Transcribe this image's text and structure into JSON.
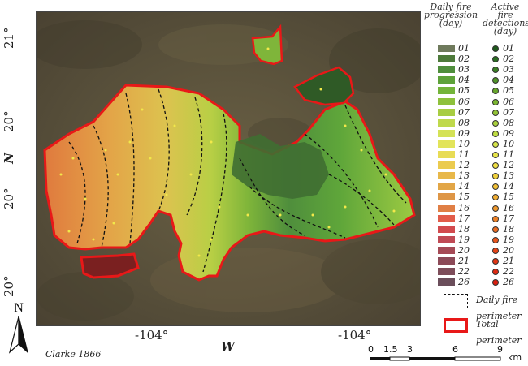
{
  "map": {
    "lat_ticks": [
      "21°",
      "20°",
      "20°",
      "20°"
    ],
    "lat_axis_label": "N",
    "lon_ticks": [
      "-104°",
      "-104°"
    ],
    "lon_axis_label": "W",
    "credit": "Clarke 1866",
    "north_label": "N"
  },
  "legend": {
    "progression_title": "Daily fire progression (day)",
    "detections_title": "Active fire detections (day)",
    "days": [
      "01",
      "02",
      "03",
      "04",
      "05",
      "06",
      "07",
      "08",
      "09",
      "10",
      "11",
      "12",
      "13",
      "14",
      "15",
      "16",
      "17",
      "18",
      "19",
      "20",
      "21",
      "22",
      "26"
    ],
    "progression_colors": [
      "#6f7a5c",
      "#4d7a3a",
      "#4f8e3c",
      "#5ea23a",
      "#74b43a",
      "#8ec13c",
      "#a8cd42",
      "#bfd94c",
      "#d4e257",
      "#e2e45a",
      "#e8dc55",
      "#ebcb4f",
      "#e8b84a",
      "#e2a647",
      "#de9646",
      "#e07f45",
      "#e25c4a",
      "#d24a4e",
      "#c04a55",
      "#a54a56",
      "#8c4a58",
      "#7d4d5a",
      "#6b4e5b"
    ],
    "detection_colors": [
      "#1f5a1c",
      "#2a6d22",
      "#3a7f25",
      "#4f9328",
      "#66a62c",
      "#7bb631",
      "#92c336",
      "#a8d03c",
      "#bedc42",
      "#d4e348",
      "#e6e448",
      "#eede42",
      "#efd03b",
      "#f0bf36",
      "#f0ad32",
      "#ee982d",
      "#ec8127",
      "#ea6b22",
      "#e8551d",
      "#e54418",
      "#e13514",
      "#de2912",
      "#d81e10"
    ],
    "daily_perimeter_label": "Daily fire perimeter",
    "total_perimeter_label": "Total perimeter"
  },
  "scalebar": {
    "ticks": [
      "0",
      "1.5",
      "3",
      "6",
      "9"
    ],
    "unit": "km"
  }
}
